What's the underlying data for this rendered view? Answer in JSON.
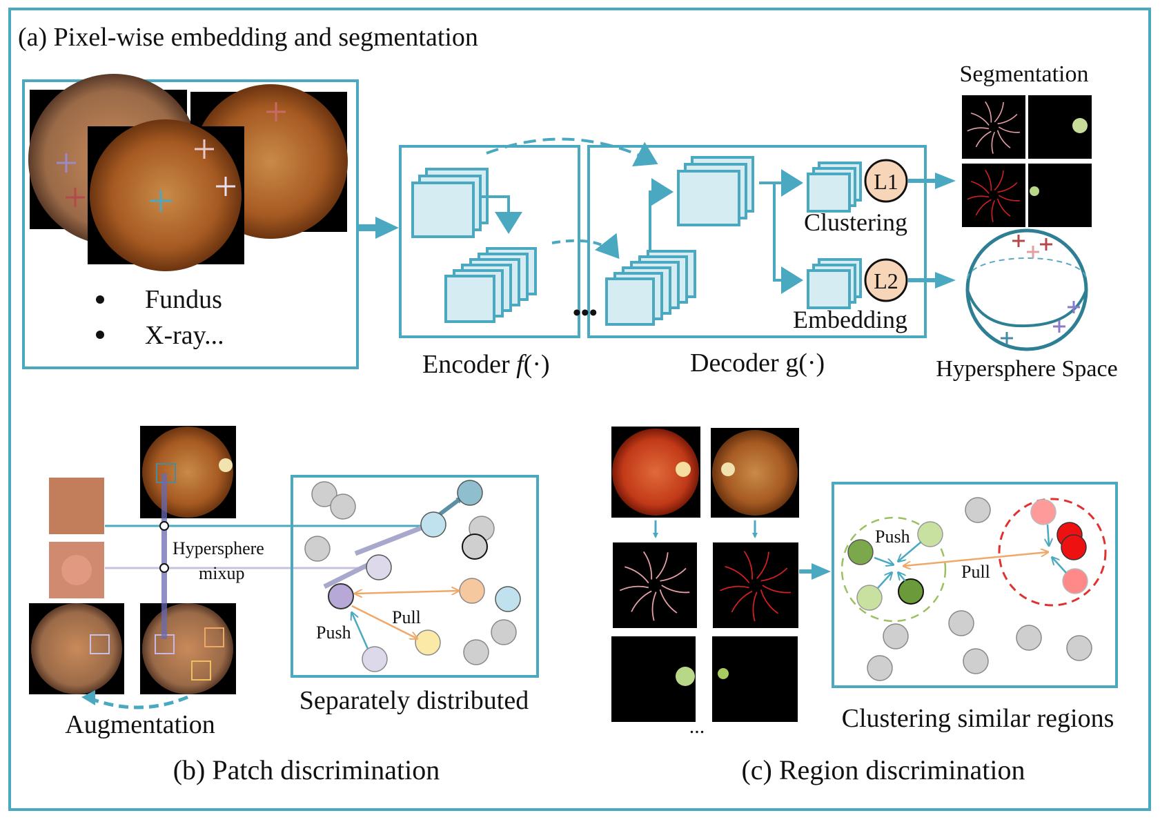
{
  "colors": {
    "frame": "#4aa8c0",
    "box_fill": "#d6ecf3",
    "arrow": "#4aa8c0",
    "loss_fill": "#f7d5b8",
    "pull": "#f0a868",
    "fundus_center": "#c27a3a",
    "fundus_edge": "#6b3410",
    "gray_node": "#cfcfcf",
    "green_node": "#8fbf5a",
    "red_node": "#ff4a4a"
  },
  "panel_a": {
    "title": "(a) Pixel-wise embedding  and segmentation",
    "bullets": [
      "Fundus",
      "X-ray..."
    ],
    "encoder_label": "Encoder ",
    "encoder_func": "f",
    "encoder_arg": "(·)",
    "decoder_label": "Decoder g(·)",
    "loss1": "L1",
    "loss2": "L2",
    "clustering_label": "Clustering",
    "embedding_label": "Embedding",
    "segmentation_label": "Segmentation",
    "hypersphere_label": "Hypersphere Space",
    "dots": "•••"
  },
  "panel_b": {
    "caption": "(b) Patch discrimination",
    "augmentation_label": "Augmentation",
    "mixup_label_1": "Hypersphere",
    "mixup_label_2": "mixup",
    "push_label": "Push",
    "pull_label": "Pull",
    "box_label": "Separately distributed"
  },
  "panel_c": {
    "caption": "(c) Region discrimination",
    "push_label": "Push",
    "pull_label": "Pull",
    "box_label": "Clustering similar regions",
    "ellipsis": "..."
  }
}
